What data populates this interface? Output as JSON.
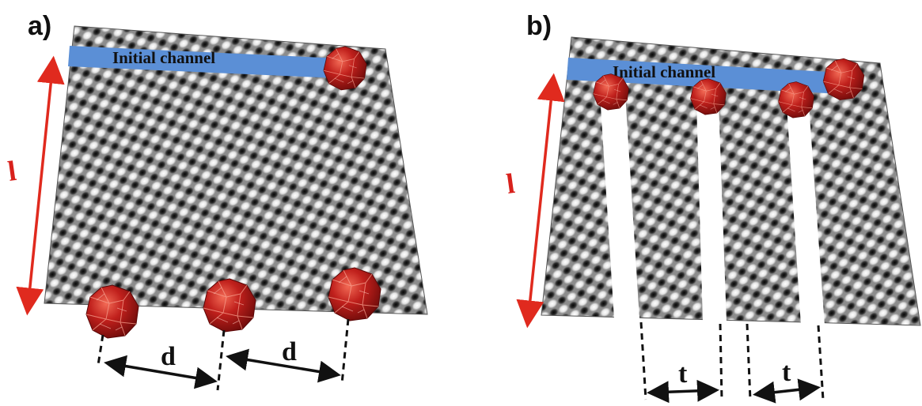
{
  "panels": [
    {
      "id": "a",
      "label": "a)",
      "channel_label": "Initial channel",
      "length_label": "l",
      "spacing_label": "d"
    },
    {
      "id": "b",
      "label": "b)",
      "channel_label": "Initial channel",
      "length_label": "l",
      "spacing_label": "t"
    }
  ],
  "colors": {
    "channel": "#5b8fd6",
    "arrow_red": "#e02a1e",
    "particle": "#c0201c",
    "particle_highlight": "#f26a55",
    "particle_shadow": "#6e0b0a",
    "lattice_dark": "#1a1a1a",
    "lattice_light": "#f2f2f2",
    "lattice_mid": "#8a8a8a"
  }
}
